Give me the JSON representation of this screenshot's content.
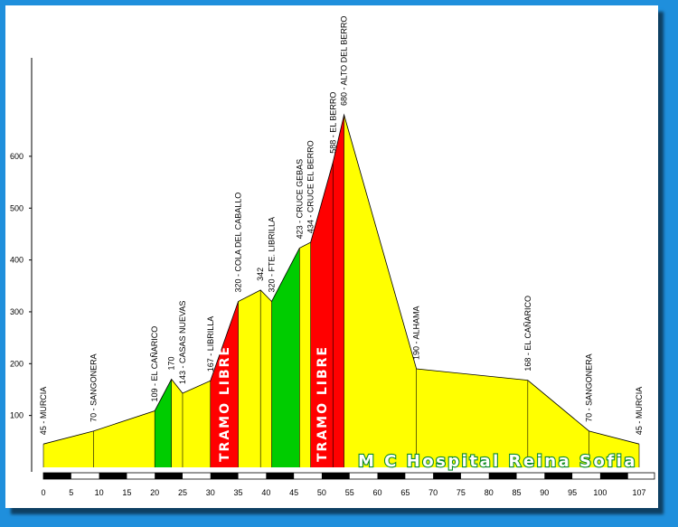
{
  "chart_data": {
    "type": "area",
    "title": "",
    "xlabel": "",
    "ylabel": "",
    "xlim": [
      0,
      107
    ],
    "ylim": [
      0,
      700
    ],
    "x_ticks": [
      0,
      5,
      10,
      15,
      20,
      25,
      30,
      35,
      40,
      45,
      50,
      55,
      60,
      65,
      70,
      75,
      80,
      85,
      90,
      95,
      100,
      107
    ],
    "y_ticks": [
      100,
      200,
      300,
      400,
      500,
      600
    ],
    "profile": [
      {
        "x": 0,
        "y": 45
      },
      {
        "x": 9,
        "y": 70
      },
      {
        "x": 20,
        "y": 109
      },
      {
        "x": 23,
        "y": 170
      },
      {
        "x": 25,
        "y": 143
      },
      {
        "x": 30,
        "y": 167
      },
      {
        "x": 35,
        "y": 320
      },
      {
        "x": 39,
        "y": 342
      },
      {
        "x": 41,
        "y": 320
      },
      {
        "x": 46,
        "y": 423
      },
      {
        "x": 48,
        "y": 434
      },
      {
        "x": 52,
        "y": 588
      },
      {
        "x": 54,
        "y": 680
      },
      {
        "x": 67,
        "y": 190
      },
      {
        "x": 87,
        "y": 168
      },
      {
        "x": 98,
        "y": 70
      },
      {
        "x": 107,
        "y": 45
      }
    ],
    "segments": [
      {
        "from": 0,
        "to": 9,
        "color": "#ffff00"
      },
      {
        "from": 9,
        "to": 20,
        "color": "#ffff00"
      },
      {
        "from": 20,
        "to": 23,
        "color": "#00cc00"
      },
      {
        "from": 23,
        "to": 25,
        "color": "#ffff00"
      },
      {
        "from": 25,
        "to": 30,
        "color": "#ffff00"
      },
      {
        "from": 30,
        "to": 35,
        "color": "#ff0000"
      },
      {
        "from": 35,
        "to": 39,
        "color": "#ffff00"
      },
      {
        "from": 39,
        "to": 41,
        "color": "#ffff00"
      },
      {
        "from": 41,
        "to": 46,
        "color": "#00cc00"
      },
      {
        "from": 46,
        "to": 48,
        "color": "#ffff00"
      },
      {
        "from": 48,
        "to": 52,
        "color": "#ff0000"
      },
      {
        "from": 52,
        "to": 54,
        "color": "#ff0000"
      },
      {
        "from": 54,
        "to": 67,
        "color": "#ffff00"
      },
      {
        "from": 67,
        "to": 87,
        "color": "#ffff00"
      },
      {
        "from": 87,
        "to": 98,
        "color": "#ffff00"
      },
      {
        "from": 98,
        "to": 107,
        "color": "#ffff00"
      }
    ],
    "stop_labels": [
      {
        "x": 0,
        "text": "45 - MURCIA",
        "y_at": 45
      },
      {
        "x": 9,
        "text": "70 - SANGONERA",
        "y_at": 70
      },
      {
        "x": 20,
        "text": "109 - EL CAÑARICO",
        "y_at": 109
      },
      {
        "x": 23,
        "text": "170",
        "y_at": 170
      },
      {
        "x": 25,
        "text": "143 - CASAS NUEVAS",
        "y_at": 143
      },
      {
        "x": 30,
        "text": "167 - LIBRILLA",
        "y_at": 167
      },
      {
        "x": 35,
        "text": "320 - COLA DEL CABALLO",
        "y_at": 320
      },
      {
        "x": 39,
        "text": "342",
        "y_at": 342
      },
      {
        "x": 41,
        "text": "320 - FTE. LIBRILLA",
        "y_at": 320
      },
      {
        "x": 46,
        "text": "423 - CRUCE GEBAS",
        "y_at": 423
      },
      {
        "x": 48,
        "text": "434 - CRUCE EL BERRO",
        "y_at": 434
      },
      {
        "x": 52,
        "text": "588 - EL BERRO",
        "y_at": 588
      },
      {
        "x": 54,
        "text": "680 - ALTO DEL BERRO",
        "y_at": 680
      },
      {
        "x": 67,
        "text": "190 - ALHAMA",
        "y_at": 190
      },
      {
        "x": 87,
        "text": "168 - EL CAÑARICO",
        "y_at": 168
      },
      {
        "x": 98,
        "text": "70 - SANGONERA",
        "y_at": 70
      },
      {
        "x": 107,
        "text": "45 - MURCIA",
        "y_at": 45
      }
    ],
    "annotations": [
      {
        "text": "TRAMO LIBRE",
        "x": 32.5
      },
      {
        "text": "TRAMO LIBRE",
        "x": 50
      }
    ],
    "watermark": "M C Hospital Reina Sofia"
  },
  "colors": {
    "climb_green": "#00cc00",
    "flat_yellow": "#ffff00",
    "tramo_red": "#ff0000",
    "background_blue": "#1f8fdc",
    "watermark_outline": "#0a8a2a"
  }
}
